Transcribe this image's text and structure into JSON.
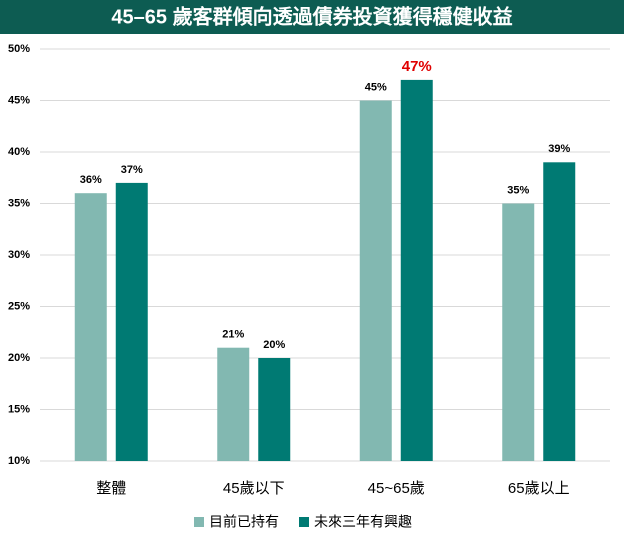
{
  "chart_data": {
    "type": "bar",
    "title": "45–65 歲客群傾向透過債券投資獲得穩健收益",
    "categories": [
      "整體",
      "45歲以下",
      "45~65歲",
      "65歲以上"
    ],
    "series": [
      {
        "name": "目前已持有",
        "color": "#82b8b1",
        "values": [
          36,
          21,
          45,
          35
        ],
        "value_labels": [
          "36%",
          "21%",
          "45%",
          "35%"
        ]
      },
      {
        "name": "未來三年有興趣",
        "color": "#007a73",
        "values": [
          37,
          20,
          47,
          39
        ],
        "value_labels": [
          "37%",
          "20%",
          "47%",
          "39%"
        ]
      }
    ],
    "ylim": [
      10,
      50
    ],
    "yticks": [
      {
        "value": 10,
        "label": "10%"
      },
      {
        "value": 15,
        "label": "15%"
      },
      {
        "value": 20,
        "label": "20%"
      },
      {
        "value": 25,
        "label": "25%"
      },
      {
        "value": 30,
        "label": "30%"
      },
      {
        "value": 35,
        "label": "35%"
      },
      {
        "value": 40,
        "label": "40%"
      },
      {
        "value": 45,
        "label": "45%"
      },
      {
        "value": 50,
        "label": "50%"
      }
    ],
    "grid": true,
    "legend": "bottom",
    "title_background": "#0d5c52"
  }
}
